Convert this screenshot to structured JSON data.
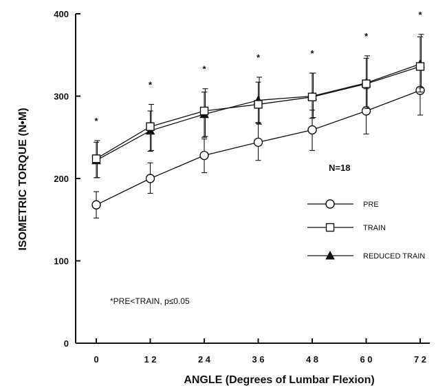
{
  "chart_data": {
    "type": "line",
    "xlabel": "ANGLE (Degrees of Lumbar Flexion)",
    "ylabel": "ISOMETRIC TORQUE (N•M)",
    "x": [
      0,
      12,
      24,
      36,
      48,
      60,
      72
    ],
    "x_tick_labels": [
      "0",
      "1 2",
      "2 4",
      "3 6",
      "4 8",
      "6 0",
      "7 2"
    ],
    "ylim": [
      0,
      400
    ],
    "y_ticks": [
      0,
      100,
      200,
      300,
      400
    ],
    "grid": false,
    "legend_position": "right",
    "series": [
      {
        "name": "PRE",
        "marker": "open-circle",
        "values": [
          168,
          200,
          228,
          244,
          259,
          282,
          307
        ],
        "error_upper": [
          184,
          219,
          248,
          267,
          283,
          309,
          339
        ],
        "error_lower": [
          152,
          182,
          207,
          222,
          234,
          254,
          277
        ]
      },
      {
        "name": "TRAIN",
        "marker": "open-square",
        "values": [
          224,
          263,
          282,
          290,
          299,
          315,
          336
        ],
        "error_upper": [
          246,
          290,
          309,
          323,
          328,
          349,
          375
        ],
        "error_lower": [
          201,
          234,
          251,
          266,
          274,
          285,
          310
        ]
      },
      {
        "name": "REDUCED TRAIN",
        "marker": "filled-triangle",
        "values": [
          222,
          258,
          278,
          295,
          300,
          316,
          339
        ],
        "error_upper": [
          244,
          282,
          305,
          317,
          328,
          346,
          372
        ],
        "error_lower": [
          201,
          233,
          250,
          268,
          273,
          287,
          305
        ]
      }
    ],
    "significance_markers": [
      "*",
      "*",
      "*",
      "*",
      "*",
      "*",
      "*"
    ],
    "annotations": {
      "n_label": "N=18",
      "footnote": "*PRE<TRAIN, p≤0.05"
    }
  }
}
